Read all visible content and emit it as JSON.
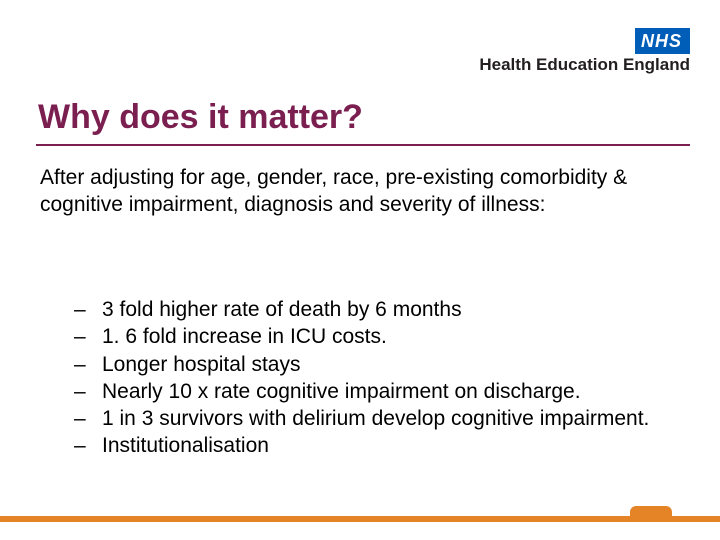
{
  "logo": {
    "nhs_text": "NHS",
    "nhs_bg": "#005eb8",
    "nhs_fg": "#ffffff",
    "hee_text": "Health Education England",
    "hee_color": "#231f20"
  },
  "title": {
    "text": "Why does it matter?",
    "color": "#7a1f4f",
    "fontsize": 34,
    "underline_color": "#7a1f4f"
  },
  "intro": {
    "text": "After adjusting for age, gender, race, pre-existing comorbidity & cognitive impairment, diagnosis and severity of illness:",
    "fontsize": 21,
    "color": "#000000"
  },
  "list": {
    "bullet": "–",
    "fontsize": 21,
    "color": "#000000",
    "items": [
      "3 fold higher rate of death by 6 months",
      "1. 6 fold increase in ICU costs.",
      "Longer hospital stays",
      "Nearly 10 x rate cognitive impairment on discharge.",
      "1 in 3 survivors with delirium develop cognitive impairment.",
      "Institutionalisation"
    ]
  },
  "footer": {
    "bar_color": "#e48427"
  },
  "background_color": "#ffffff"
}
